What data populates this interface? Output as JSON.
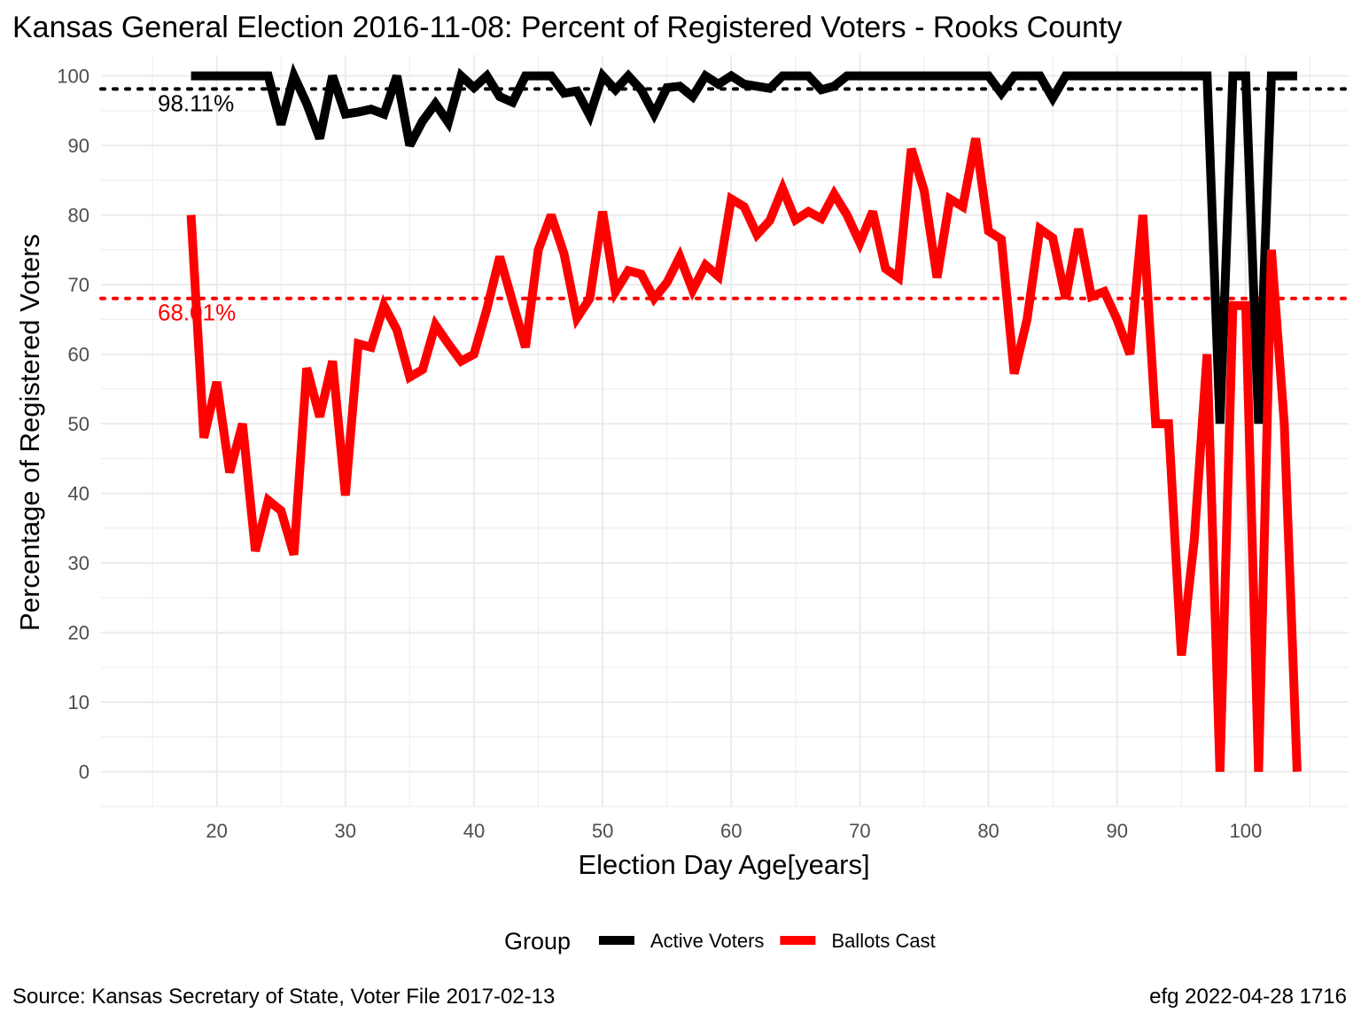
{
  "title": "Kansas General Election 2016-11-08:  Percent of Registered Voters - Rooks County",
  "caption_left": "Source:  Kansas Secretary of State, Voter File  2017-02-13",
  "caption_right": "efg 2022-04-28 1716",
  "legend": {
    "title": "Group",
    "items": [
      {
        "label": "Active Voters",
        "color": "#000000"
      },
      {
        "label": "Ballots Cast",
        "color": "#ff0000"
      }
    ],
    "position": "bottom"
  },
  "chart_data": {
    "type": "line",
    "title": "Kansas General Election 2016-11-08:  Percent of Registered Voters - Rooks County",
    "xlabel": "Election Day Age[years]",
    "ylabel": "Percentage of Registered Voters",
    "xlim": [
      11,
      108
    ],
    "ylim": [
      -5,
      103
    ],
    "x_ticks": [
      20,
      30,
      40,
      50,
      60,
      70,
      80,
      90,
      100
    ],
    "y_ticks": [
      0,
      10,
      20,
      30,
      40,
      50,
      60,
      70,
      80,
      90,
      100
    ],
    "grid": true,
    "x": [
      18,
      19,
      20,
      21,
      22,
      23,
      24,
      25,
      26,
      27,
      28,
      29,
      30,
      31,
      32,
      33,
      34,
      35,
      36,
      37,
      38,
      39,
      40,
      41,
      42,
      43,
      44,
      45,
      46,
      47,
      48,
      49,
      50,
      51,
      52,
      53,
      54,
      55,
      56,
      57,
      58,
      59,
      60,
      61,
      62,
      63,
      64,
      65,
      66,
      67,
      68,
      69,
      70,
      71,
      72,
      73,
      74,
      75,
      76,
      77,
      78,
      79,
      80,
      81,
      82,
      83,
      84,
      85,
      86,
      87,
      88,
      89,
      90,
      91,
      92,
      93,
      94,
      95,
      96,
      97,
      98,
      99,
      100,
      101,
      102,
      103,
      104
    ],
    "series": [
      {
        "name": "Active Voters",
        "color": "#000000",
        "values": [
          100,
          100,
          100,
          100,
          100,
          100,
          100,
          93,
          100,
          96,
          91,
          100,
          94.5,
          94.8,
          95.2,
          94.5,
          100,
          90,
          93.5,
          96,
          93.3,
          100,
          98.3,
          100,
          97,
          96.2,
          100,
          100,
          100,
          97.5,
          97.8,
          94.3,
          100,
          98,
          100,
          98,
          94.5,
          98.3,
          98.5,
          97,
          100,
          98.8,
          100,
          98.8,
          98.5,
          98.2,
          100,
          100,
          100,
          98,
          98.5,
          100,
          100,
          100,
          100,
          100,
          100,
          100,
          100,
          100,
          100,
          100,
          100,
          97.5,
          100,
          100,
          100,
          96.8,
          100,
          100,
          100,
          100,
          100,
          100,
          100,
          100,
          100,
          100,
          100,
          100,
          50,
          100,
          100,
          50,
          100,
          100,
          100
        ]
      },
      {
        "name": "Ballots Cast",
        "color": "#ff0000",
        "values": [
          80,
          48,
          56,
          43,
          50,
          31.7,
          39,
          37.5,
          31.2,
          58,
          51,
          59,
          39.7,
          61.5,
          61,
          67,
          63.5,
          56.7,
          57.8,
          64.2,
          61.5,
          59,
          60,
          66.5,
          74,
          67.5,
          61,
          75,
          80,
          74.4,
          65.2,
          68,
          80.5,
          69,
          72,
          71.5,
          68,
          70.3,
          74,
          69.2,
          72.8,
          71.2,
          82.3,
          81.2,
          77.2,
          79.2,
          83.8,
          79.3,
          80.5,
          79.5,
          83,
          80,
          76,
          80.5,
          72.3,
          71,
          89.5,
          83.5,
          71,
          82.3,
          81.2,
          91,
          77.7,
          76.5,
          57.2,
          65,
          78,
          76.7,
          68,
          78,
          68.3,
          69,
          65,
          60,
          80,
          50,
          50,
          16.7,
          33.3,
          60,
          0,
          67,
          67,
          0,
          75,
          50,
          0
        ]
      }
    ],
    "reference_lines": [
      {
        "series": "Active Voters",
        "value": 98.11,
        "label": "98.11%",
        "color": "#000000",
        "style": "dotted"
      },
      {
        "series": "Ballots Cast",
        "value": 68.01,
        "label": "68.01%",
        "color": "#ff0000",
        "style": "dotted"
      }
    ]
  }
}
